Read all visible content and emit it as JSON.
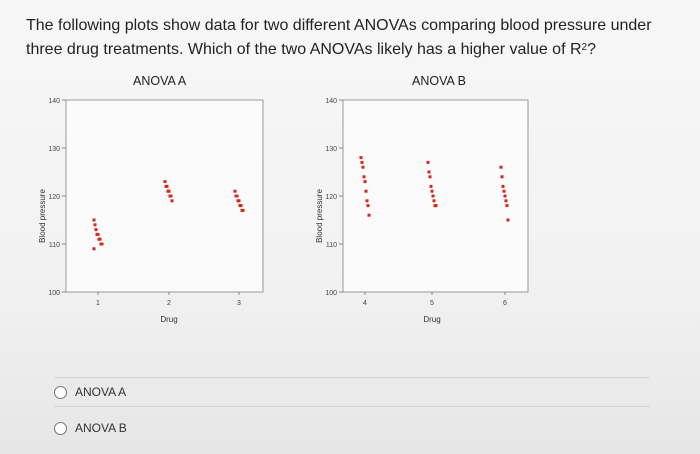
{
  "question": {
    "text_before": "The following plots show data for two different ANOVAs comparing blood pressure under three drug treatments. Which of the two ANOVAs likely has a higher value of R",
    "superscript": "2",
    "text_after": "?"
  },
  "options": [
    {
      "label": "ANOVA A"
    },
    {
      "label": "ANOVA B"
    }
  ],
  "chart_data": [
    {
      "type": "scatter",
      "title": "ANOVA A",
      "xlabel": "Drug",
      "ylabel": "Blood pressure",
      "ylim": [
        100,
        140
      ],
      "yticks": [
        100,
        110,
        120,
        130,
        140
      ],
      "xticks": [
        "1",
        "2",
        "3"
      ],
      "series": [
        {
          "name": "Drug 1",
          "x": 1,
          "values": [
            115,
            114,
            113,
            112,
            112,
            111,
            111,
            110,
            110,
            109
          ]
        },
        {
          "name": "Drug 2",
          "x": 2,
          "values": [
            123,
            122,
            122,
            121,
            121,
            120,
            120,
            119
          ]
        },
        {
          "name": "Drug 3",
          "x": 3,
          "values": [
            121,
            120,
            120,
            119,
            119,
            118,
            118,
            117,
            117
          ]
        }
      ],
      "point_color": "#d9261c"
    },
    {
      "type": "scatter",
      "title": "ANOVA B",
      "xlabel": "Drug",
      "ylabel": "Blood pressure",
      "ylim": [
        100,
        140
      ],
      "yticks": [
        100,
        110,
        120,
        130,
        140
      ],
      "xticks": [
        "4",
        "5",
        "6"
      ],
      "series": [
        {
          "name": "Drug 4",
          "x": 4,
          "values": [
            128,
            127,
            126,
            124,
            123,
            121,
            119,
            118,
            116
          ]
        },
        {
          "name": "Drug 5",
          "x": 5,
          "values": [
            127,
            125,
            124,
            122,
            121,
            120,
            119,
            118,
            118
          ]
        },
        {
          "name": "Drug 6",
          "x": 6,
          "values": [
            126,
            124,
            122,
            121,
            120,
            119,
            118,
            115
          ]
        }
      ],
      "point_color": "#d9261c"
    }
  ]
}
